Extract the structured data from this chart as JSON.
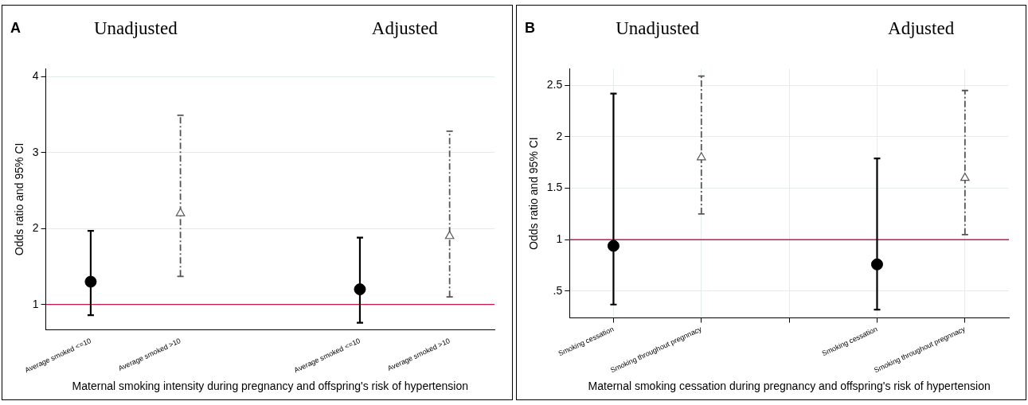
{
  "chart_data": [
    {
      "type": "scatter",
      "title": "A",
      "annotations": [
        "Unadjusted",
        "Adjusted"
      ],
      "xlabel": "Maternal smoking intensity during pregnancy and offspring's risk of hypertension",
      "ylabel": "Odds ratio and 95% CI",
      "categories": [
        "Average smoked <=10",
        "Average smoked >10",
        null,
        "Average smoked <=10",
        "Average smoked >10"
      ],
      "series": [
        {
          "color": "#000000",
          "marker": "circle",
          "line_style": "solid",
          "values": [
            1.3,
            null,
            null,
            1.2,
            null
          ],
          "errors": [
            [
              0.86,
              1.97
            ],
            null,
            null,
            [
              0.76,
              1.88
            ],
            null
          ]
        },
        {
          "color": "#555555",
          "marker": "triangle",
          "line_style": "dashed",
          "values": [
            null,
            2.2,
            null,
            null,
            1.9
          ],
          "errors": [
            null,
            [
              1.37,
              3.49
            ],
            null,
            null,
            [
              1.1,
              3.28
            ]
          ]
        }
      ],
      "ylim": [
        0.67,
        4.1
      ],
      "yticks": [
        1,
        2,
        3,
        4
      ],
      "grid": "y",
      "legend": false,
      "ref_lines": [
        {
          "axis": "y",
          "value": 1,
          "color": "#c8184a"
        }
      ]
    },
    {
      "type": "scatter",
      "title": "B",
      "annotations": [
        "Unadjusted",
        "Adjusted"
      ],
      "xlabel": "Maternal smoking cessation during pregnancy and offspring's risk of hypertension",
      "ylabel": "Odds ratio and 95% CI",
      "categories": [
        "Smoking cessation",
        "Smoking throughout pregnnacy",
        null,
        "Smoking cessation",
        "Smoking throughout pregnnacy"
      ],
      "series": [
        {
          "color": "#000000",
          "marker": "circle",
          "line_style": "solid",
          "values": [
            0.94,
            null,
            null,
            0.76,
            null
          ],
          "errors": [
            [
              0.37,
              2.42
            ],
            null,
            null,
            [
              0.32,
              1.79
            ],
            null
          ]
        },
        {
          "color": "#555555",
          "marker": "triangle",
          "line_style": "dashed",
          "values": [
            null,
            1.8,
            null,
            null,
            1.6
          ],
          "errors": [
            null,
            [
              1.25,
              2.59
            ],
            null,
            null,
            [
              1.05,
              2.45
            ]
          ]
        }
      ],
      "ylim": [
        0.24,
        2.66
      ],
      "yticks": [
        {
          "value": 0.5,
          "label": ".5"
        },
        1,
        1.5,
        2,
        2.5
      ],
      "grid": true,
      "legend": false,
      "ref_lines": [
        {
          "axis": "y",
          "value": 1,
          "color": "#c8184a"
        }
      ]
    }
  ]
}
